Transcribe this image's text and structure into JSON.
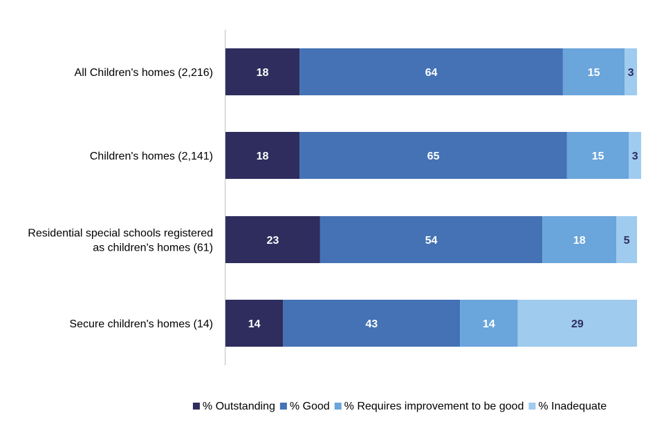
{
  "chart_data": {
    "type": "bar",
    "orientation": "horizontal",
    "stacked": true,
    "xlim": [
      0,
      100
    ],
    "grid": false,
    "legend_position": "bottom",
    "categories": [
      [
        "All Children's homes (2,216)"
      ],
      [
        "Children's homes (2,141)"
      ],
      [
        "Residential special schools registered",
        "as children's homes (61)"
      ],
      [
        "Secure children's homes (14)"
      ]
    ],
    "series": [
      {
        "name": "% Outstanding",
        "color": "#2e2d5e",
        "label_color": "#ffffff",
        "values": [
          18,
          18,
          23,
          14
        ]
      },
      {
        "name": "% Good",
        "color": "#4472b4",
        "label_color": "#ffffff",
        "values": [
          64,
          65,
          54,
          43
        ]
      },
      {
        "name": "% Requires improvement to be good",
        "color": "#6aa5db",
        "label_color": "#ffffff",
        "values": [
          15,
          15,
          18,
          14
        ]
      },
      {
        "name": "% Inadequate",
        "color": "#9fcbef",
        "label_color": "#2e2d5e",
        "values": [
          3,
          3,
          5,
          29
        ]
      }
    ]
  }
}
